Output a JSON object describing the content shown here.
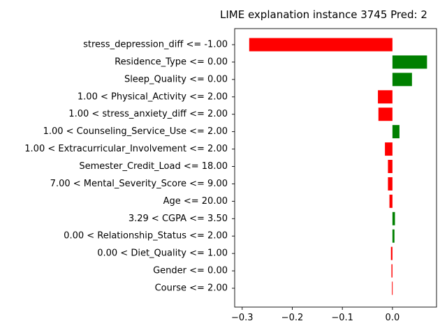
{
  "chart_data": {
    "type": "bar",
    "orientation": "horizontal",
    "title": "LIME explanation instance 3745 Pred: 2",
    "xlabel": "",
    "ylabel": "",
    "xlim": [
      -0.315,
      0.088
    ],
    "xticks": [
      -0.3,
      -0.2,
      -0.1,
      0.0
    ],
    "xtick_labels": [
      "−0.3",
      "−0.2",
      "−0.1",
      "0.0"
    ],
    "categories": [
      "stress_depression_diff <= -1.00",
      "Residence_Type <= 0.00",
      "Sleep_Quality <= 0.00",
      "1.00 < Physical_Activity <= 2.00",
      "1.00 < stress_anxiety_diff <= 2.00",
      "1.00 < Counseling_Service_Use <= 2.00",
      "1.00 < Extracurricular_Involvement <= 2.00",
      "Semester_Credit_Load <= 18.00",
      "7.00 < Mental_Severity_Score <= 9.00",
      "Age <= 20.00",
      "3.29 < CGPA <= 3.50",
      "0.00 < Relationship_Status <= 2.00",
      "0.00 < Diet_Quality <= 1.00",
      "Gender <= 0.00",
      "Course <= 2.00"
    ],
    "values": [
      -0.286,
      0.069,
      0.039,
      -0.029,
      -0.028,
      0.014,
      -0.015,
      -0.009,
      -0.009,
      -0.006,
      0.005,
      0.004,
      -0.003,
      -0.002,
      -0.001
    ],
    "colors": {
      "positive": "#008000",
      "negative": "#ff0000"
    },
    "grid": false,
    "legend": "none"
  }
}
